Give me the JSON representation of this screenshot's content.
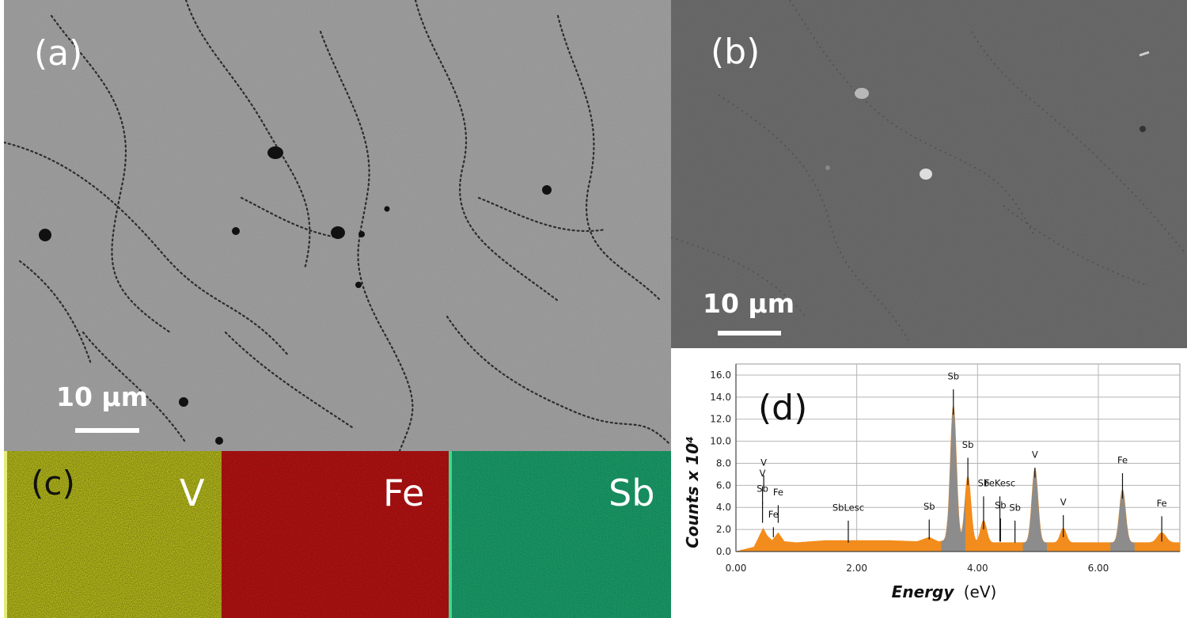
{
  "panels": {
    "a": {
      "label": "(a)",
      "scale_text": "10 µm"
    },
    "b": {
      "label": "(b)",
      "scale_text": "10 µm"
    },
    "c": {
      "label": "(c)",
      "maps": [
        {
          "element": "V",
          "color": "#b8bd1e"
        },
        {
          "element": "Fe",
          "color": "#a81414"
        },
        {
          "element": "Sb",
          "color": "#1f9a66"
        }
      ]
    },
    "d": {
      "label": "(d)"
    }
  },
  "chart_data": {
    "type": "area",
    "xlabel_italic": "Energy",
    "xlabel_unit": "(eV)",
    "ylabel": "Counts x 10⁴",
    "xlim": [
      0,
      7.35
    ],
    "ylim": [
      0,
      17
    ],
    "xticks": [
      0,
      2,
      4,
      6
    ],
    "xtick_labels": [
      "0.00",
      "2.00",
      "4.00",
      "6.00"
    ],
    "yticks": [
      0,
      2,
      4,
      6,
      8,
      10,
      12,
      14,
      16
    ],
    "ytick_labels": [
      "0.0",
      "2.0",
      "4.0",
      "6.0",
      "8.0",
      "10.0",
      "12.0",
      "14.0",
      "16.0"
    ],
    "grid": true,
    "spectrum_color": "#f28c1c",
    "peak_fill_color": "#8c8c8c",
    "baseline": [
      [
        0,
        0
      ],
      [
        0.3,
        0.4
      ],
      [
        0.45,
        2.1
      ],
      [
        0.52,
        1.4
      ],
      [
        0.6,
        1.0
      ],
      [
        0.7,
        1.7
      ],
      [
        0.8,
        0.9
      ],
      [
        1.0,
        0.8
      ],
      [
        1.5,
        1.0
      ],
      [
        2.0,
        1.0
      ],
      [
        2.5,
        1.0
      ],
      [
        3.0,
        0.9
      ],
      [
        3.2,
        1.3
      ],
      [
        3.35,
        0.9
      ],
      [
        3.5,
        1.0
      ]
    ],
    "peaks": [
      {
        "center": 3.6,
        "height": 12.4,
        "width": 0.05,
        "fill": "gray"
      },
      {
        "center": 3.84,
        "height": 6.0,
        "width": 0.05,
        "fill": "orange"
      },
      {
        "center": 4.1,
        "height": 2.0,
        "width": 0.05,
        "fill": "orange"
      },
      {
        "center": 4.95,
        "height": 6.7,
        "width": 0.05,
        "fill": "gray"
      },
      {
        "center": 5.42,
        "height": 1.3,
        "width": 0.05,
        "fill": "orange"
      },
      {
        "center": 6.4,
        "height": 4.8,
        "width": 0.05,
        "fill": "gray"
      },
      {
        "center": 7.05,
        "height": 0.9,
        "width": 0.07,
        "fill": "orange"
      }
    ],
    "annotations": [
      {
        "text": "V",
        "x": 0.46,
        "line_top": 5.8,
        "label_y": 7.8
      },
      {
        "text": "V",
        "x": 0.44,
        "line_top": 4.3,
        "label_y": 6.8
      },
      {
        "text": "Sb",
        "x": 0.44,
        "line_top": 2.6,
        "label_y": 5.4
      },
      {
        "text": "Fe",
        "x": 0.7,
        "line_top": 2.6,
        "label_y": 5.1
      },
      {
        "text": "Fe",
        "x": 0.62,
        "line_top": 1.3,
        "label_y": 3.1
      },
      {
        "text": "SbLesc",
        "x": 1.86,
        "line_top": 0.8,
        "label_y": 3.7
      },
      {
        "text": "Sb",
        "x": 3.2,
        "line_top": 1.1,
        "label_y": 3.8
      },
      {
        "text": "Sb",
        "x": 3.6,
        "line_top": 12.4,
        "label_y": 15.6
      },
      {
        "text": "Sb",
        "x": 3.84,
        "line_top": 6.0,
        "label_y": 9.4
      },
      {
        "text": "Sb",
        "x": 4.1,
        "line_top": 2.0,
        "label_y": 5.9
      },
      {
        "text": "FeKesc",
        "x": 4.37,
        "line_top": 0.9,
        "label_y": 5.9
      },
      {
        "text": "Sb",
        "x": 4.38,
        "line_top": 0.9,
        "label_y": 3.9
      },
      {
        "text": "Sb",
        "x": 4.62,
        "line_top": 0.8,
        "label_y": 3.7
      },
      {
        "text": "V",
        "x": 4.95,
        "line_top": 6.7,
        "label_y": 8.5
      },
      {
        "text": "V",
        "x": 5.42,
        "line_top": 1.3,
        "label_y": 4.2
      },
      {
        "text": "Fe",
        "x": 6.4,
        "line_top": 4.8,
        "label_y": 8.0
      },
      {
        "text": "Fe",
        "x": 7.05,
        "line_top": 0.9,
        "label_y": 4.1
      }
    ]
  }
}
